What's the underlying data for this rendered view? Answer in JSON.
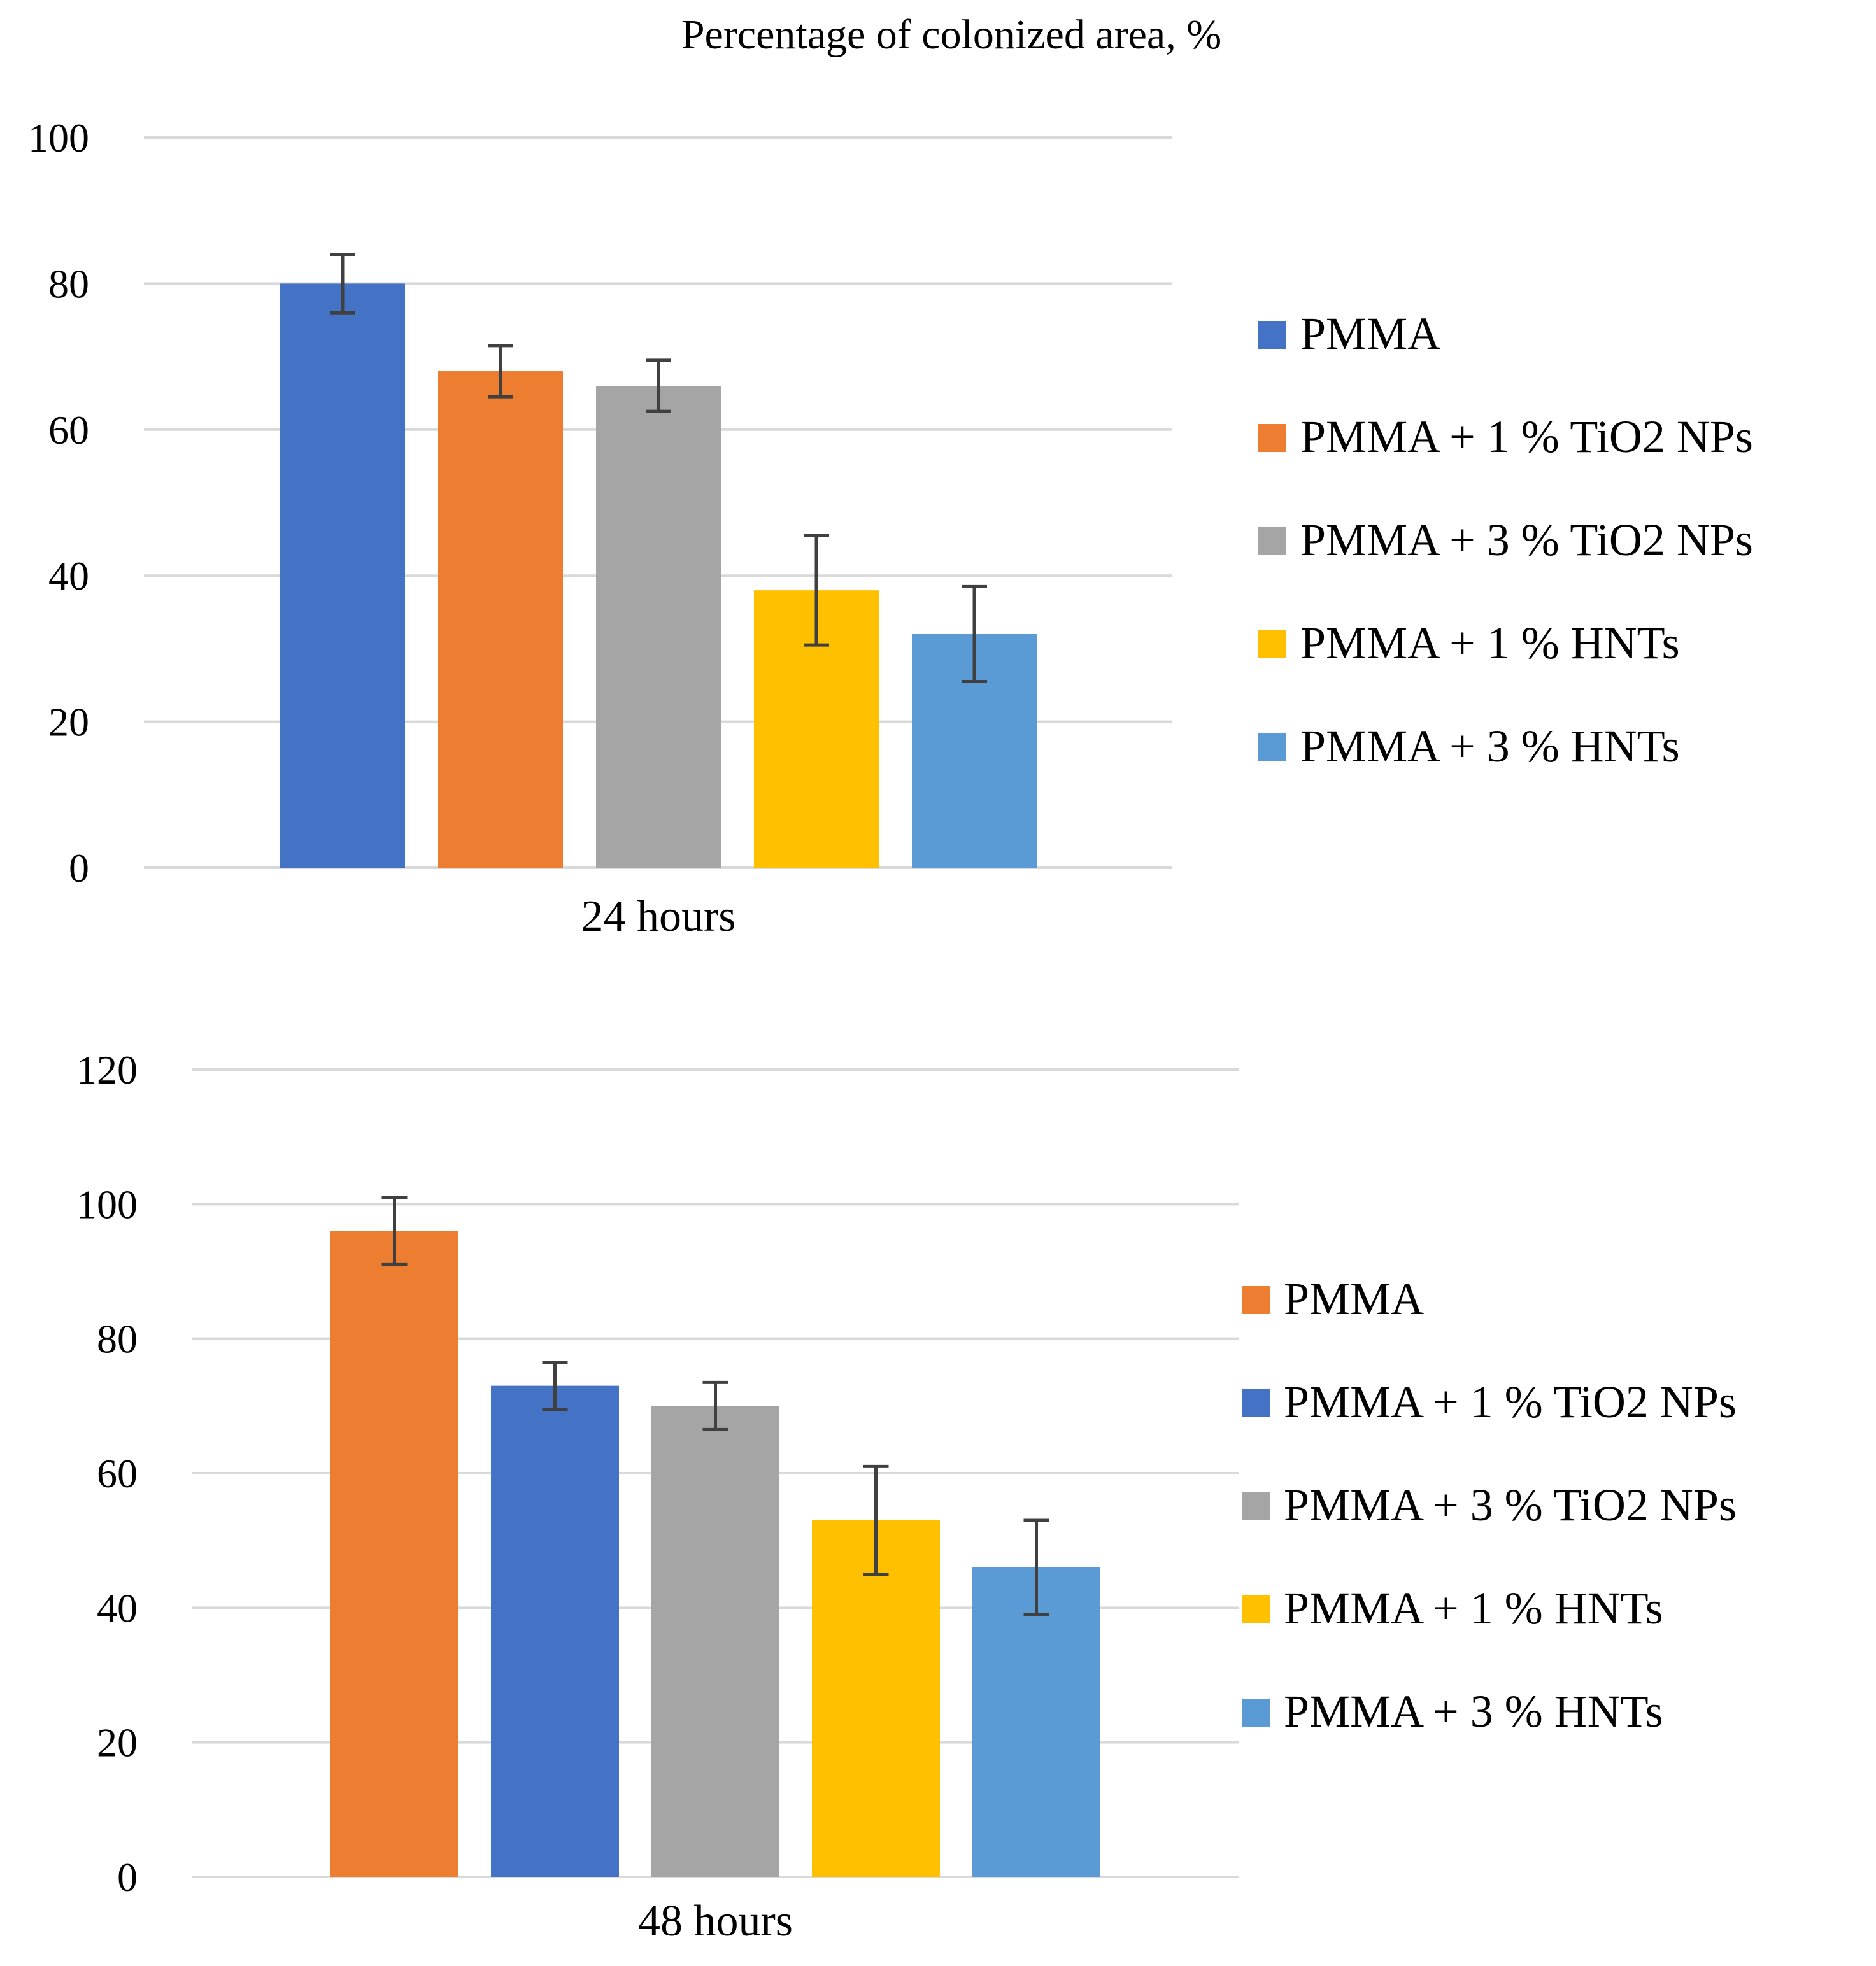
{
  "title": "Percentage of colonized area, %",
  "colors": {
    "PMMA": "#4472C4",
    "PMMA_48h": "#ED7D31",
    "TiO2_1_24h": "#ED7D31",
    "TiO2_1_48h": "#4472C4",
    "TiO2_3": "#A5A5A5",
    "HNT_1": "#FFC000",
    "HNT_3": "#5B9BD5",
    "gridline": "#D9D9D9",
    "error_bar": "#404040"
  },
  "chart_data": [
    {
      "type": "bar",
      "categories": [
        "24 hours"
      ],
      "ylim": [
        0,
        100
      ],
      "yticks": [
        0,
        20,
        40,
        60,
        80,
        100
      ],
      "grid": true,
      "legend_position": "right",
      "series": [
        {
          "name": "PMMA",
          "color": "#4472C4",
          "values": [
            80
          ],
          "error": [
            4
          ]
        },
        {
          "name": "PMMA + 1 % TiO2 NPs",
          "color": "#ED7D31",
          "values": [
            68
          ],
          "error": [
            3.5
          ]
        },
        {
          "name": "PMMA + 3 % TiO2 NPs",
          "color": "#A5A5A5",
          "values": [
            66
          ],
          "error": [
            3.5
          ]
        },
        {
          "name": "PMMA + 1 % HNTs",
          "color": "#FFC000",
          "values": [
            38
          ],
          "error": [
            7.5
          ]
        },
        {
          "name": "PMMA + 3 % HNTs",
          "color": "#5B9BD5",
          "values": [
            32
          ],
          "error": [
            6.5
          ]
        }
      ]
    },
    {
      "type": "bar",
      "categories": [
        "48 hours"
      ],
      "ylim": [
        0,
        120
      ],
      "yticks": [
        0,
        20,
        40,
        60,
        80,
        100,
        120
      ],
      "grid": true,
      "legend_position": "right",
      "series": [
        {
          "name": "PMMA",
          "color": "#ED7D31",
          "values": [
            96
          ],
          "error": [
            5
          ]
        },
        {
          "name": "PMMA + 1 % TiO2 NPs",
          "color": "#4472C4",
          "values": [
            73
          ],
          "error": [
            3.5
          ]
        },
        {
          "name": "PMMA + 3 % TiO2 NPs",
          "color": "#A5A5A5",
          "values": [
            70
          ],
          "error": [
            3.5
          ]
        },
        {
          "name": "PMMA + 1 % HNTs",
          "color": "#FFC000",
          "values": [
            53
          ],
          "error": [
            8
          ]
        },
        {
          "name": "PMMA + 3 % HNTs",
          "color": "#5B9BD5",
          "values": [
            46
          ],
          "error": [
            7
          ]
        }
      ]
    }
  ]
}
